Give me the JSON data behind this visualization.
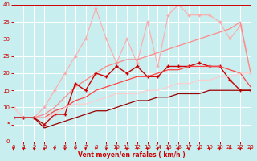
{
  "xlabel": "Vent moyen/en rafales ( km/h )",
  "xlim": [
    0,
    23
  ],
  "ylim": [
    0,
    40
  ],
  "yticks": [
    0,
    5,
    10,
    15,
    20,
    25,
    30,
    35,
    40
  ],
  "xticks": [
    0,
    1,
    2,
    3,
    4,
    5,
    6,
    7,
    8,
    9,
    10,
    11,
    12,
    13,
    14,
    15,
    16,
    17,
    18,
    19,
    20,
    21,
    22,
    23
  ],
  "bg_color": "#c8eef0",
  "grid_color": "#ffffff",
  "series": [
    {
      "x": [
        0,
        1,
        2,
        3,
        4,
        5,
        6,
        7,
        8,
        9,
        10,
        11,
        12,
        13,
        14,
        15,
        16,
        17,
        18,
        19,
        20,
        21,
        22,
        23
      ],
      "y": [
        10,
        7,
        7,
        10,
        15,
        20,
        25,
        30,
        39,
        30,
        23,
        30,
        23,
        35,
        22,
        37,
        40,
        37,
        37,
        37,
        35,
        30,
        34,
        20
      ],
      "color": "#ffaaaa",
      "linewidth": 0.8,
      "marker": "+",
      "markersize": 3.0,
      "alpha": 1.0
    },
    {
      "x": [
        0,
        1,
        2,
        3,
        4,
        5,
        6,
        7,
        8,
        9,
        10,
        11,
        12,
        13,
        14,
        15,
        16,
        17,
        18,
        19,
        20,
        21,
        22,
        23
      ],
      "y": [
        7,
        7,
        7,
        8,
        10,
        13,
        16,
        18,
        20,
        22,
        23,
        24,
        24,
        25,
        26,
        27,
        28,
        29,
        30,
        31,
        32,
        33,
        35,
        20
      ],
      "color": "#ff8888",
      "linewidth": 0.9,
      "marker": null,
      "markersize": 0,
      "alpha": 1.0
    },
    {
      "x": [
        0,
        1,
        2,
        3,
        4,
        5,
        6,
        7,
        8,
        9,
        10,
        11,
        12,
        13,
        14,
        15,
        16,
        17,
        18,
        19,
        20,
        21,
        22,
        23
      ],
      "y": [
        7,
        7,
        7,
        5,
        8,
        8,
        17,
        15,
        20,
        19,
        22,
        20,
        22,
        19,
        19,
        22,
        22,
        22,
        23,
        22,
        22,
        18,
        15,
        15
      ],
      "color": "#cc0000",
      "linewidth": 1.0,
      "marker": "+",
      "markersize": 3.0,
      "alpha": 1.0
    },
    {
      "x": [
        0,
        1,
        2,
        3,
        4,
        5,
        6,
        7,
        8,
        9,
        10,
        11,
        12,
        13,
        14,
        15,
        16,
        17,
        18,
        19,
        20,
        21,
        22,
        23
      ],
      "y": [
        7,
        7,
        7,
        7,
        9,
        10,
        12,
        13,
        15,
        16,
        17,
        18,
        19,
        19,
        20,
        21,
        21,
        22,
        22,
        22,
        22,
        21,
        20,
        16
      ],
      "color": "#ff4444",
      "linewidth": 0.9,
      "marker": null,
      "markersize": 0,
      "alpha": 1.0
    },
    {
      "x": [
        0,
        1,
        2,
        3,
        4,
        5,
        6,
        7,
        8,
        9,
        10,
        11,
        12,
        13,
        14,
        15,
        16,
        17,
        18,
        19,
        20,
        21,
        22,
        23
      ],
      "y": [
        10,
        7,
        7,
        7,
        8,
        10,
        11,
        11,
        12,
        13,
        14,
        14,
        14,
        15,
        15,
        16,
        17,
        17,
        18,
        18,
        19,
        19,
        20,
        20
      ],
      "color": "#ffcccc",
      "linewidth": 0.9,
      "marker": null,
      "markersize": 0,
      "alpha": 1.0
    },
    {
      "x": [
        0,
        1,
        2,
        3,
        4,
        5,
        6,
        7,
        8,
        9,
        10,
        11,
        12,
        13,
        14,
        15,
        16,
        17,
        18,
        19,
        20,
        21,
        22,
        23
      ],
      "y": [
        7,
        7,
        7,
        4,
        5,
        6,
        7,
        8,
        9,
        9,
        10,
        11,
        12,
        12,
        13,
        13,
        14,
        14,
        14,
        15,
        15,
        15,
        15,
        15
      ],
      "color": "#990000",
      "linewidth": 0.9,
      "marker": null,
      "markersize": 0,
      "alpha": 1.0
    }
  ],
  "arrow_color": "#cc0000",
  "tick_color": "#cc0000"
}
